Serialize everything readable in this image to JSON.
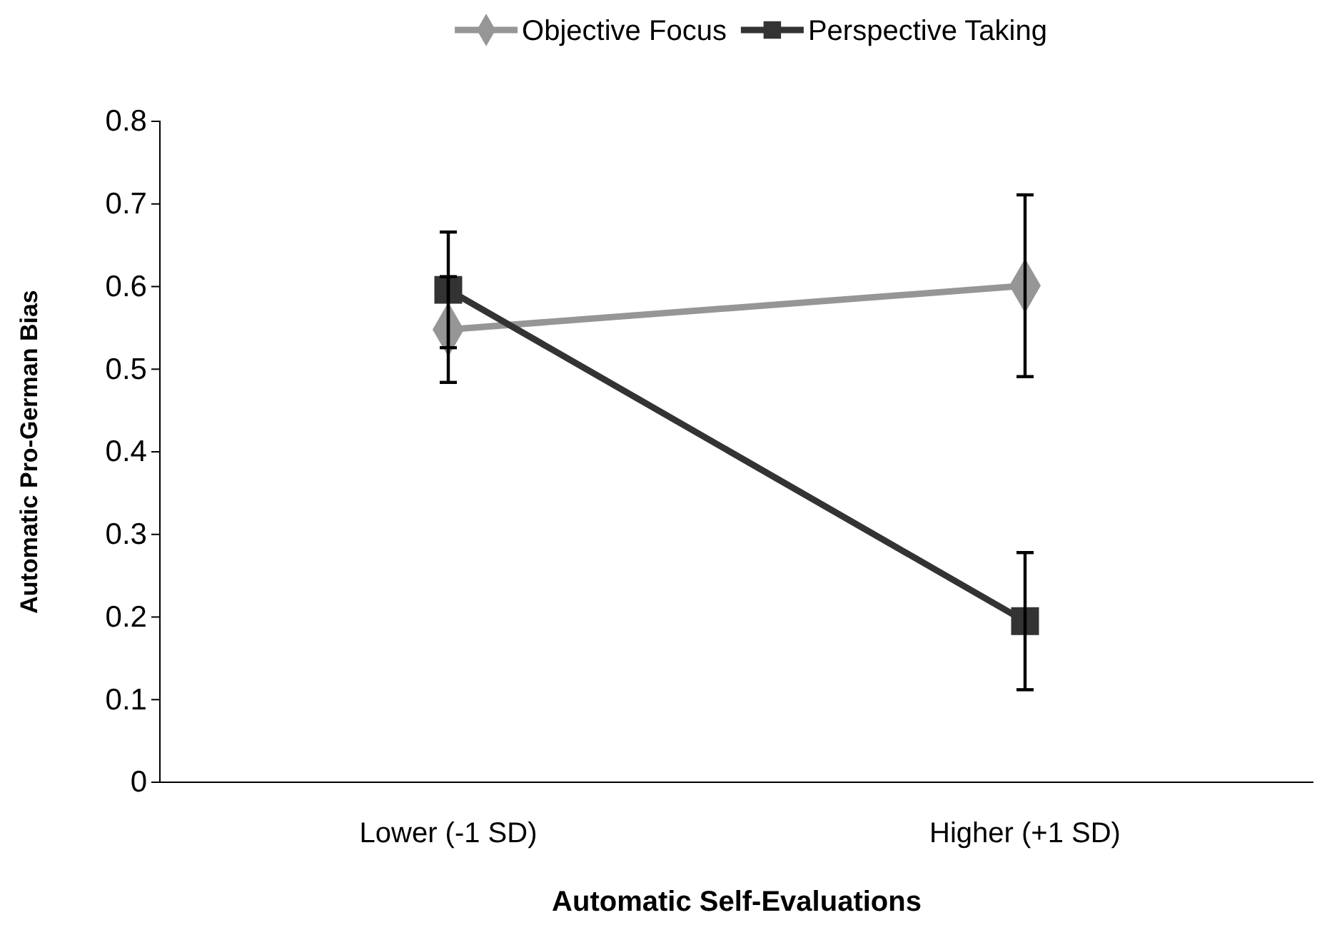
{
  "chart_data": {
    "type": "line",
    "xlabel": "Automatic Self-Evaluations",
    "ylabel": "Automatic Pro-German Bias",
    "categories": [
      "Lower (-1 SD)",
      "Higher (+1 SD)"
    ],
    "series": [
      {
        "name": "Objective Focus",
        "color": "#969696",
        "values": [
          0.548,
          0.601
        ],
        "errors": [
          0.064,
          0.11
        ],
        "marker": "diamond"
      },
      {
        "name": "Perspective Taking",
        "color": "#333333",
        "values": [
          0.596,
          0.195
        ],
        "errors": [
          0.07,
          0.083
        ],
        "marker": "square"
      }
    ],
    "ylim": [
      0,
      0.8
    ],
    "yticks": [
      {
        "value": 0,
        "label": "0"
      },
      0.1,
      0.2,
      0.3,
      0.4,
      0.5,
      0.6,
      0.7,
      0.8
    ],
    "grid": false,
    "legend": "top",
    "line_style": "solid"
  }
}
